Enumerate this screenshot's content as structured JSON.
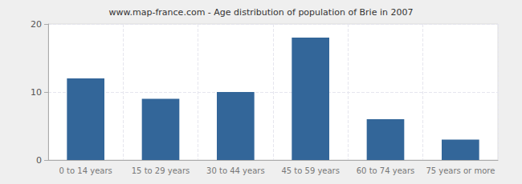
{
  "chart_data": {
    "type": "bar",
    "title": "www.map-france.com - Age distribution of population of Brie in 2007",
    "categories": [
      "0 to 14 years",
      "15 to 29 years",
      "30 to 44 years",
      "45 to 59 years",
      "60 to 74 years",
      "75 years or more"
    ],
    "values": [
      12,
      9,
      10,
      18,
      6,
      3
    ],
    "color": "#336699",
    "ylim": [
      0,
      20
    ],
    "yticks": [
      0,
      10,
      20
    ],
    "grid": true
  }
}
